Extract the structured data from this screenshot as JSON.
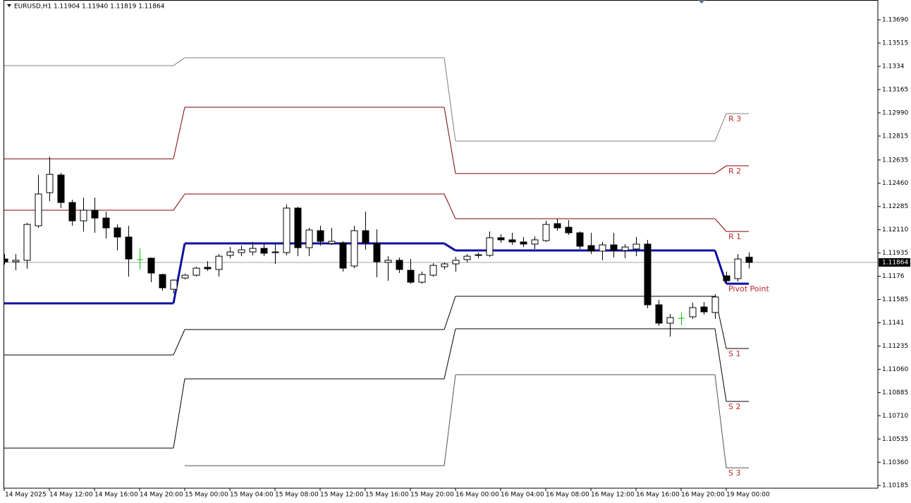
{
  "chart_data": {
    "type": "candlestick",
    "title": "EURUSD,H1 1.11904 1.11940 1.11819 1.11864",
    "categories": [
      "14 May 2025",
      null,
      null,
      null,
      "14 May 12:00",
      null,
      null,
      null,
      "14 May 16:00",
      null,
      null,
      null,
      "14 May 20:00",
      null,
      null,
      null,
      "15 May 00:00",
      null,
      null,
      null,
      "15 May 04:00",
      null,
      null,
      null,
      "15 May 08:00",
      null,
      null,
      null,
      "15 May 12:00",
      null,
      null,
      null,
      "15 May 16:00",
      null,
      null,
      null,
      "15 May 20:00",
      null,
      null,
      null,
      "16 May 00:00",
      null,
      null,
      null,
      "16 May 04:00",
      null,
      null,
      null,
      "16 May 08:00",
      null,
      null,
      null,
      "16 May 12:00",
      null,
      null,
      null,
      "16 May 16:00",
      null,
      null,
      null,
      "16 May 20:00",
      null,
      null,
      null,
      "19 May 00:00",
      null,
      null
    ],
    "open": [
      1.1189,
      1.11869,
      1.1188,
      1.1214,
      1.12389,
      1.12522,
      1.12315,
      1.12177,
      1.12257,
      1.12198,
      1.12124,
      1.12055,
      1.11885,
      1.11896,
      1.11773,
      1.11662,
      1.11747,
      1.11768,
      1.11827,
      1.11811,
      1.11917,
      1.11938,
      1.11943,
      1.1197,
      1.11938,
      1.11938,
      1.12273,
      1.11975,
      1.12103,
      1.12007,
      1.12012,
      1.11837,
      1.12103,
      1.12007,
      1.11864,
      1.1188,
      1.11805,
      1.11715,
      1.11768,
      1.11832,
      1.11853,
      1.11885,
      1.11917,
      1.11917,
      1.1205,
      1.12034,
      1.12018,
      1.12002,
      1.12028,
      1.12156,
      1.12129,
      1.12087,
      1.11991,
      1.11949,
      1.11996,
      1.11954,
      1.11965,
      1.12002,
      1.11545,
      1.11407,
      1.11444,
      1.11455,
      1.11529,
      1.11487,
      1.11763,
      1.11742,
      1.11904
    ],
    "high": [
      1.11927,
      1.11927,
      1.12161,
      1.12522,
      1.1266,
      1.12538,
      1.12336,
      1.12352,
      1.12352,
      1.12246,
      1.1215,
      1.1214,
      1.1197,
      1.11901,
      1.11779,
      1.11736,
      1.11779,
      1.11832,
      1.11874,
      1.11927,
      1.1198,
      1.11991,
      1.12018,
      1.12007,
      1.12012,
      1.12299,
      1.12283,
      1.12124,
      1.1214,
      1.12124,
      1.12023,
      1.1214,
      1.12246,
      1.12113,
      1.11911,
      1.11901,
      1.1189,
      1.11795,
      1.11858,
      1.11864,
      1.11906,
      1.11927,
      1.11938,
      1.12097,
      1.12076,
      1.12087,
      1.12055,
      1.1206,
      1.12177,
      1.12193,
      1.12182,
      1.12097,
      1.12087,
      1.12018,
      1.12087,
      1.12002,
      1.12055,
      1.12034,
      1.11582,
      1.11476,
      1.11487,
      1.11561,
      1.11566,
      1.11625,
      1.11795,
      1.11927,
      1.1194
    ],
    "low": [
      1.11848,
      1.11805,
      1.11816,
      1.12124,
      1.12326,
      1.12273,
      1.1214,
      1.12097,
      1.12087,
      1.12044,
      1.11954,
      1.11757,
      1.11811,
      1.11715,
      1.11651,
      1.1163,
      1.11736,
      1.11757,
      1.118,
      1.11757,
      1.11896,
      1.11911,
      1.11917,
      1.11911,
      1.11853,
      1.11917,
      1.11911,
      1.11911,
      1.11991,
      1.11996,
      1.11795,
      1.11821,
      1.11959,
      1.11752,
      1.11726,
      1.11784,
      1.11704,
      1.11704,
      1.11757,
      1.11811,
      1.11795,
      1.11864,
      1.11896,
      1.11906,
      1.12012,
      1.11996,
      1.1198,
      1.11965,
      1.12018,
      1.12103,
      1.12071,
      1.11965,
      1.11927,
      1.1188,
      1.11901,
      1.11896,
      1.11911,
      1.11519,
      1.11386,
      1.11306,
      1.11391,
      1.11439,
      1.11471,
      1.11439,
      1.1171,
      1.1172,
      1.11819
    ],
    "close": [
      1.11869,
      1.1188,
      1.1215,
      1.12379,
      1.12527,
      1.12315,
      1.12177,
      1.12257,
      1.12198,
      1.12124,
      1.12055,
      1.1189,
      1.11885,
      1.11784,
      1.11673,
      1.11731,
      1.11768,
      1.11821,
      1.11816,
      1.11911,
      1.11943,
      1.11959,
      1.1197,
      1.11933,
      1.11943,
      1.12273,
      1.11975,
      1.12108,
      1.12023,
      1.12023,
      1.11821,
      1.12103,
      1.12012,
      1.11869,
      1.1188,
      1.11811,
      1.11715,
      1.11773,
      1.11842,
      1.11853,
      1.1188,
      1.11911,
      1.11922,
      1.1205,
      1.12034,
      1.12018,
      1.12002,
      1.12034,
      1.1215,
      1.12124,
      1.12087,
      1.11986,
      1.11949,
      1.11996,
      1.11954,
      1.1198,
      1.12002,
      1.11545,
      1.11407,
      1.11449,
      1.11444,
      1.11524,
      1.11492,
      1.11604,
      1.11726,
      1.1189,
      1.11864
    ],
    "bull_color": "#ffffff",
    "bear_color": "#000000",
    "doji_color": "#00c000",
    "wick_color": "#000000",
    "levels": [
      {
        "name": "R 3",
        "color": "#7f7f7f",
        "width": 1,
        "values": [
          1.13345,
          1.13404,
          1.12777,
          1.12984
        ]
      },
      {
        "name": "R 2",
        "color": "#800000",
        "width": 1,
        "values": [
          1.12644,
          1.13032,
          1.12533,
          1.12591
        ]
      },
      {
        "name": "R 1",
        "color": "#800000",
        "width": 1,
        "values": [
          1.12257,
          1.12379,
          1.12193,
          1.12097
        ]
      },
      {
        "name": "Pivot Point",
        "color": "#1010a0",
        "width": 3,
        "values": [
          1.11556,
          1.12007,
          1.11954,
          1.11704
        ]
      },
      {
        "name": "S 1",
        "color": "#000000",
        "width": 1,
        "values": [
          1.11168,
          1.11359,
          1.11609,
          1.11216
        ]
      },
      {
        "name": "S 2",
        "color": "#000000",
        "width": 1,
        "values": [
          1.10467,
          1.10988,
          1.11365,
          1.10818
        ]
      },
      {
        "name": "S 3",
        "color": "#555555",
        "width": 1,
        "values": [
          null,
          1.10334,
          1.11019,
          1.10318
        ]
      }
    ],
    "label_color": "#c0282d",
    "last_price": 1.11864,
    "ylim": [
      1.10165,
      1.13839
    ],
    "yticks": [
      {
        "value": 1.1369,
        "label": "1.13690"
      },
      1.13515,
      1.1334,
      1.13165,
      {
        "value": 1.1299,
        "label": "1.12990"
      },
      1.12815,
      1.12635,
      {
        "value": 1.1246,
        "label": "1.12460"
      },
      1.12285,
      {
        "value": 1.1211,
        "label": "1.12110"
      },
      1.11935,
      1.1176,
      1.11585,
      1.1141,
      1.11235,
      {
        "value": 1.1106,
        "label": "1.11060"
      },
      1.10885,
      {
        "value": 1.1071,
        "label": "1.10710"
      },
      1.10535,
      {
        "value": 1.1036,
        "label": "1.10360"
      },
      1.10185
    ]
  }
}
